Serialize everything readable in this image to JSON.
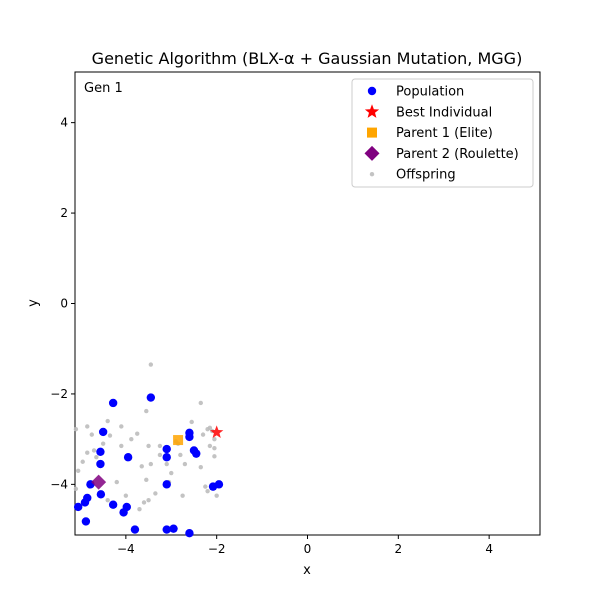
{
  "chart_data": {
    "type": "scatter",
    "title": "Genetic Algorithm (BLX-α + Gaussian Mutation, MGG)",
    "xlabel": "x",
    "ylabel": "y",
    "xlim": [
      -5.12,
      5.12
    ],
    "ylim": [
      -5.12,
      5.12
    ],
    "xticks": [
      -4,
      -2,
      0,
      2,
      4
    ],
    "yticks": [
      -4,
      -2,
      0,
      2,
      4
    ],
    "xtick_labels": [
      "−4",
      "−2",
      "0",
      "2",
      "4"
    ],
    "ytick_labels": [
      "−4",
      "−2",
      "0",
      "2",
      "4"
    ],
    "grid": false,
    "legend_position": "top-right",
    "annotation": "Gen 1",
    "colors": {
      "population": "#0000ff",
      "best": "#ff0000",
      "parent1": "#ffa500",
      "parent2": "#800080",
      "offspring": "#bdbdbd"
    },
    "series": [
      {
        "name": "Population",
        "marker": "circle",
        "points": [
          [
            -4.28,
            -2.2
          ],
          [
            -3.45,
            -2.08
          ],
          [
            -4.5,
            -2.84
          ],
          [
            -4.56,
            -3.28
          ],
          [
            -4.56,
            -3.55
          ],
          [
            -3.95,
            -3.4
          ],
          [
            -3.1,
            -3.22
          ],
          [
            -3.1,
            -3.4
          ],
          [
            -2.6,
            -2.86
          ],
          [
            -2.6,
            -2.95
          ],
          [
            -2.5,
            -3.25
          ],
          [
            -2.45,
            -3.32
          ],
          [
            -2.08,
            -4.05
          ],
          [
            -1.95,
            -4.0
          ],
          [
            -3.1,
            -4.0
          ],
          [
            -4.78,
            -4.0
          ],
          [
            -4.55,
            -4.22
          ],
          [
            -4.85,
            -4.3
          ],
          [
            -4.9,
            -4.4
          ],
          [
            -5.05,
            -4.5
          ],
          [
            -4.28,
            -4.45
          ],
          [
            -4.05,
            -4.62
          ],
          [
            -3.98,
            -4.5
          ],
          [
            -4.88,
            -4.82
          ],
          [
            -3.8,
            -5.0
          ],
          [
            -3.1,
            -5.0
          ],
          [
            -2.95,
            -4.98
          ],
          [
            -2.6,
            -5.08
          ]
        ]
      },
      {
        "name": "Best Individual",
        "marker": "star",
        "points": [
          [
            -2.0,
            -2.85
          ]
        ]
      },
      {
        "name": "Parent 1 (Elite)",
        "marker": "square",
        "points": [
          [
            -2.85,
            -3.02
          ]
        ]
      },
      {
        "name": "Parent 2 (Roulette)",
        "marker": "diamond",
        "points": [
          [
            -4.6,
            -3.95
          ]
        ]
      },
      {
        "name": "Offspring",
        "marker": "small-circle",
        "points": [
          [
            -3.45,
            -1.35
          ],
          [
            -3.55,
            -2.38
          ],
          [
            -2.35,
            -2.2
          ],
          [
            -4.4,
            -2.6
          ],
          [
            -4.1,
            -2.72
          ],
          [
            -4.85,
            -2.72
          ],
          [
            -5.1,
            -2.78
          ],
          [
            -4.75,
            -2.9
          ],
          [
            -4.35,
            -2.92
          ],
          [
            -3.75,
            -2.88
          ],
          [
            -3.88,
            -3.0
          ],
          [
            -2.55,
            -2.62
          ],
          [
            -2.3,
            -2.9
          ],
          [
            -2.15,
            -2.75
          ],
          [
            -2.2,
            -2.78
          ],
          [
            -2.1,
            -2.82
          ],
          [
            -2.05,
            -3.0
          ],
          [
            -2.05,
            -3.2
          ],
          [
            -2.05,
            -3.38
          ],
          [
            -2.15,
            -3.15
          ],
          [
            -2.35,
            -3.62
          ],
          [
            -2.7,
            -3.55
          ],
          [
            -3.1,
            -3.55
          ],
          [
            -3.25,
            -3.35
          ],
          [
            -3.25,
            -3.15
          ],
          [
            -3.5,
            -3.15
          ],
          [
            -3.45,
            -3.55
          ],
          [
            -3.65,
            -3.6
          ],
          [
            -3.55,
            -3.9
          ],
          [
            -3.05,
            -3.95
          ],
          [
            -2.75,
            -4.25
          ],
          [
            -3.35,
            -4.2
          ],
          [
            -4.0,
            -4.25
          ],
          [
            -4.2,
            -3.95
          ],
          [
            -4.65,
            -3.4
          ],
          [
            -4.7,
            -3.25
          ],
          [
            -4.85,
            -3.3
          ],
          [
            -4.95,
            -3.5
          ],
          [
            -5.05,
            -3.7
          ],
          [
            -4.5,
            -3.1
          ],
          [
            -4.4,
            -4.35
          ],
          [
            -3.6,
            -4.4
          ],
          [
            -2.2,
            -4.15
          ],
          [
            -2.0,
            -4.25
          ],
          [
            -2.25,
            -4.05
          ],
          [
            -3.5,
            -4.35
          ],
          [
            -4.1,
            -3.15
          ],
          [
            -5.1,
            -4.1
          ],
          [
            -4.8,
            -4.05
          ],
          [
            -3.7,
            -4.55
          ],
          [
            -3.0,
            -3.75
          ],
          [
            -2.8,
            -3.35
          ],
          [
            -2.85,
            -3.1
          ],
          [
            -2.9,
            -3.05
          ]
        ]
      }
    ]
  }
}
